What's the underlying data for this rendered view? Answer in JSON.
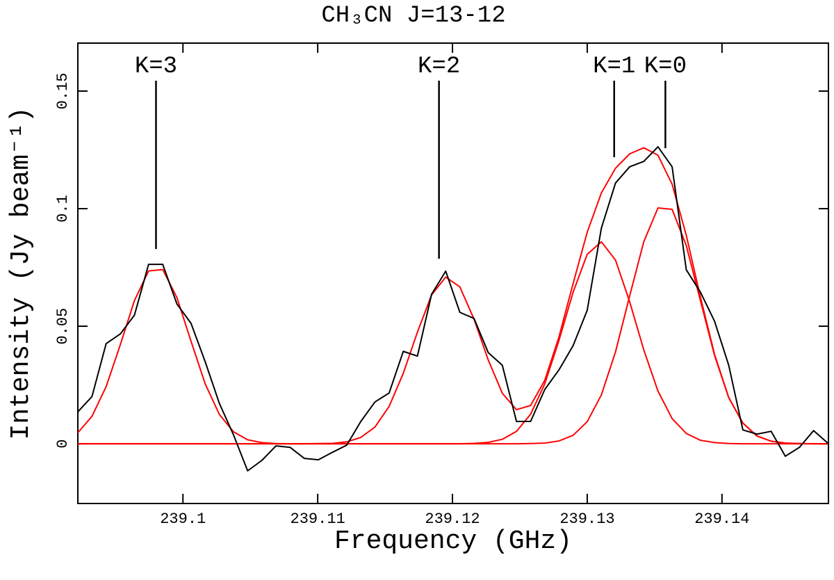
{
  "chart_data": {
    "type": "line",
    "title": "CH₃CN J=13-12",
    "x_label": "Frequency (GHz)",
    "y_label": "Intensity (Jy beam⁻¹)",
    "xlim": [
      239.0922,
      239.1479
    ],
    "ylim": [
      -0.0254,
      0.1704
    ],
    "xticks": [
      239.1,
      239.11,
      239.12,
      239.13,
      239.14
    ],
    "yticks": [
      0,
      0.05,
      0.1,
      0.15
    ],
    "x": [
      239.0922,
      239.09325,
      239.0943,
      239.09535,
      239.0964,
      239.09745,
      239.0985,
      239.09955,
      239.1006,
      239.10165,
      239.1027,
      239.10375,
      239.1048,
      239.10585,
      239.1069,
      239.10795,
      239.109,
      239.11005,
      239.1111,
      239.11215,
      239.1132,
      239.11425,
      239.1153,
      239.11635,
      239.1174,
      239.11845,
      239.1195,
      239.12055,
      239.1216,
      239.12265,
      239.1237,
      239.12475,
      239.1258,
      239.12685,
      239.1279,
      239.12895,
      239.13,
      239.13105,
      239.1321,
      239.13315,
      239.1342,
      239.13525,
      239.1363,
      239.13735,
      239.1384,
      239.13945,
      239.1405,
      239.14155,
      239.1426,
      239.14365,
      239.1447,
      239.14575,
      239.1468,
      239.14785
    ],
    "series": [
      {
        "color": "#ff0000",
        "values": [
          0.0047,
          0.0117,
          0.0243,
          0.0421,
          0.0609,
          0.0735,
          0.0741,
          0.0622,
          0.0436,
          0.0255,
          0.0125,
          0.0051,
          0.0017,
          0.0005,
          0.0001,
          0,
          0,
          0.0001,
          0.0002,
          0.0008,
          0.0027,
          0.0071,
          0.0159,
          0.03,
          0.0475,
          0.0633,
          0.0709,
          0.0667,
          0.053,
          0.0357,
          0.0215,
          0.0145,
          0.0163,
          0.027,
          0.0454,
          0.0681,
          0.09,
          0.1067,
          0.1172,
          0.1233,
          0.1259,
          0.1227,
          0.1104,
          0.0887,
          0.0624,
          0.038,
          0.0197,
          0.0088,
          0.0033,
          0.0011,
          0.0003,
          0.0001,
          0,
          0
        ]
      },
      {
        "color": "#ff0000",
        "values": [
          0,
          0,
          0,
          0,
          0,
          0,
          0,
          0,
          0,
          0,
          0,
          0,
          0,
          0,
          0,
          0,
          0,
          0,
          0,
          0,
          0,
          0,
          0,
          0,
          0,
          0,
          0,
          0,
          0.0002,
          0.0006,
          0.0019,
          0.0053,
          0.0126,
          0.0255,
          0.0439,
          0.0644,
          0.0806,
          0.0859,
          0.0781,
          0.0604,
          0.0399,
          0.0224,
          0.0107,
          0.0044,
          0.0015,
          0.0005,
          0.0001,
          0,
          0,
          0,
          0,
          0,
          0,
          0
        ]
      },
      {
        "color": "#ff0000",
        "values": [
          0,
          0,
          0,
          0,
          0,
          0,
          0,
          0,
          0,
          0,
          0,
          0,
          0,
          0,
          0,
          0,
          0,
          0,
          0,
          0,
          0,
          0,
          0,
          0,
          0,
          0,
          0,
          0,
          0,
          0,
          0,
          0,
          0.0001,
          0.0003,
          0.0012,
          0.0036,
          0.0094,
          0.0208,
          0.0391,
          0.0629,
          0.086,
          0.1003,
          0.0997,
          0.0843,
          0.0609,
          0.0375,
          0.0196,
          0.0088,
          0.0033,
          0.0011,
          0.0003,
          0.0001,
          0,
          0
        ]
      },
      {
        "color": "#000000",
        "values": [
          0.0136,
          0.0201,
          0.0426,
          0.0467,
          0.0547,
          0.0763,
          0.0763,
          0.0595,
          0.0512,
          0.0349,
          0.0172,
          0.0038,
          -0.0115,
          -0.0071,
          -0.0009,
          -0.0015,
          -0.0062,
          -0.0068,
          -0.0036,
          -0.0006,
          0.0095,
          0.0178,
          0.0216,
          0.0393,
          0.0373,
          0.0636,
          0.0734,
          0.0559,
          0.0533,
          0.0388,
          0.0334,
          0.0095,
          0.0095,
          0.0231,
          0.0314,
          0.0417,
          0.0568,
          0.0917,
          0.1109,
          0.1178,
          0.1201,
          0.1263,
          0.1178,
          0.074,
          0.0645,
          0.0521,
          0.0334,
          0.0059,
          0.0041,
          0.0053,
          -0.0053,
          -0.0015,
          0.0056,
          0.0003
        ]
      }
    ],
    "annotations": [
      {
        "text": "K=3",
        "x": 239.098,
        "y": 0.0828
      },
      {
        "text": "K=2",
        "x": 239.119,
        "y": 0.0787
      },
      {
        "text": "K=1",
        "x": 239.132,
        "y": 0.1219
      },
      {
        "text": "K=0",
        "x": 239.1358,
        "y": 0.1257
      }
    ]
  }
}
